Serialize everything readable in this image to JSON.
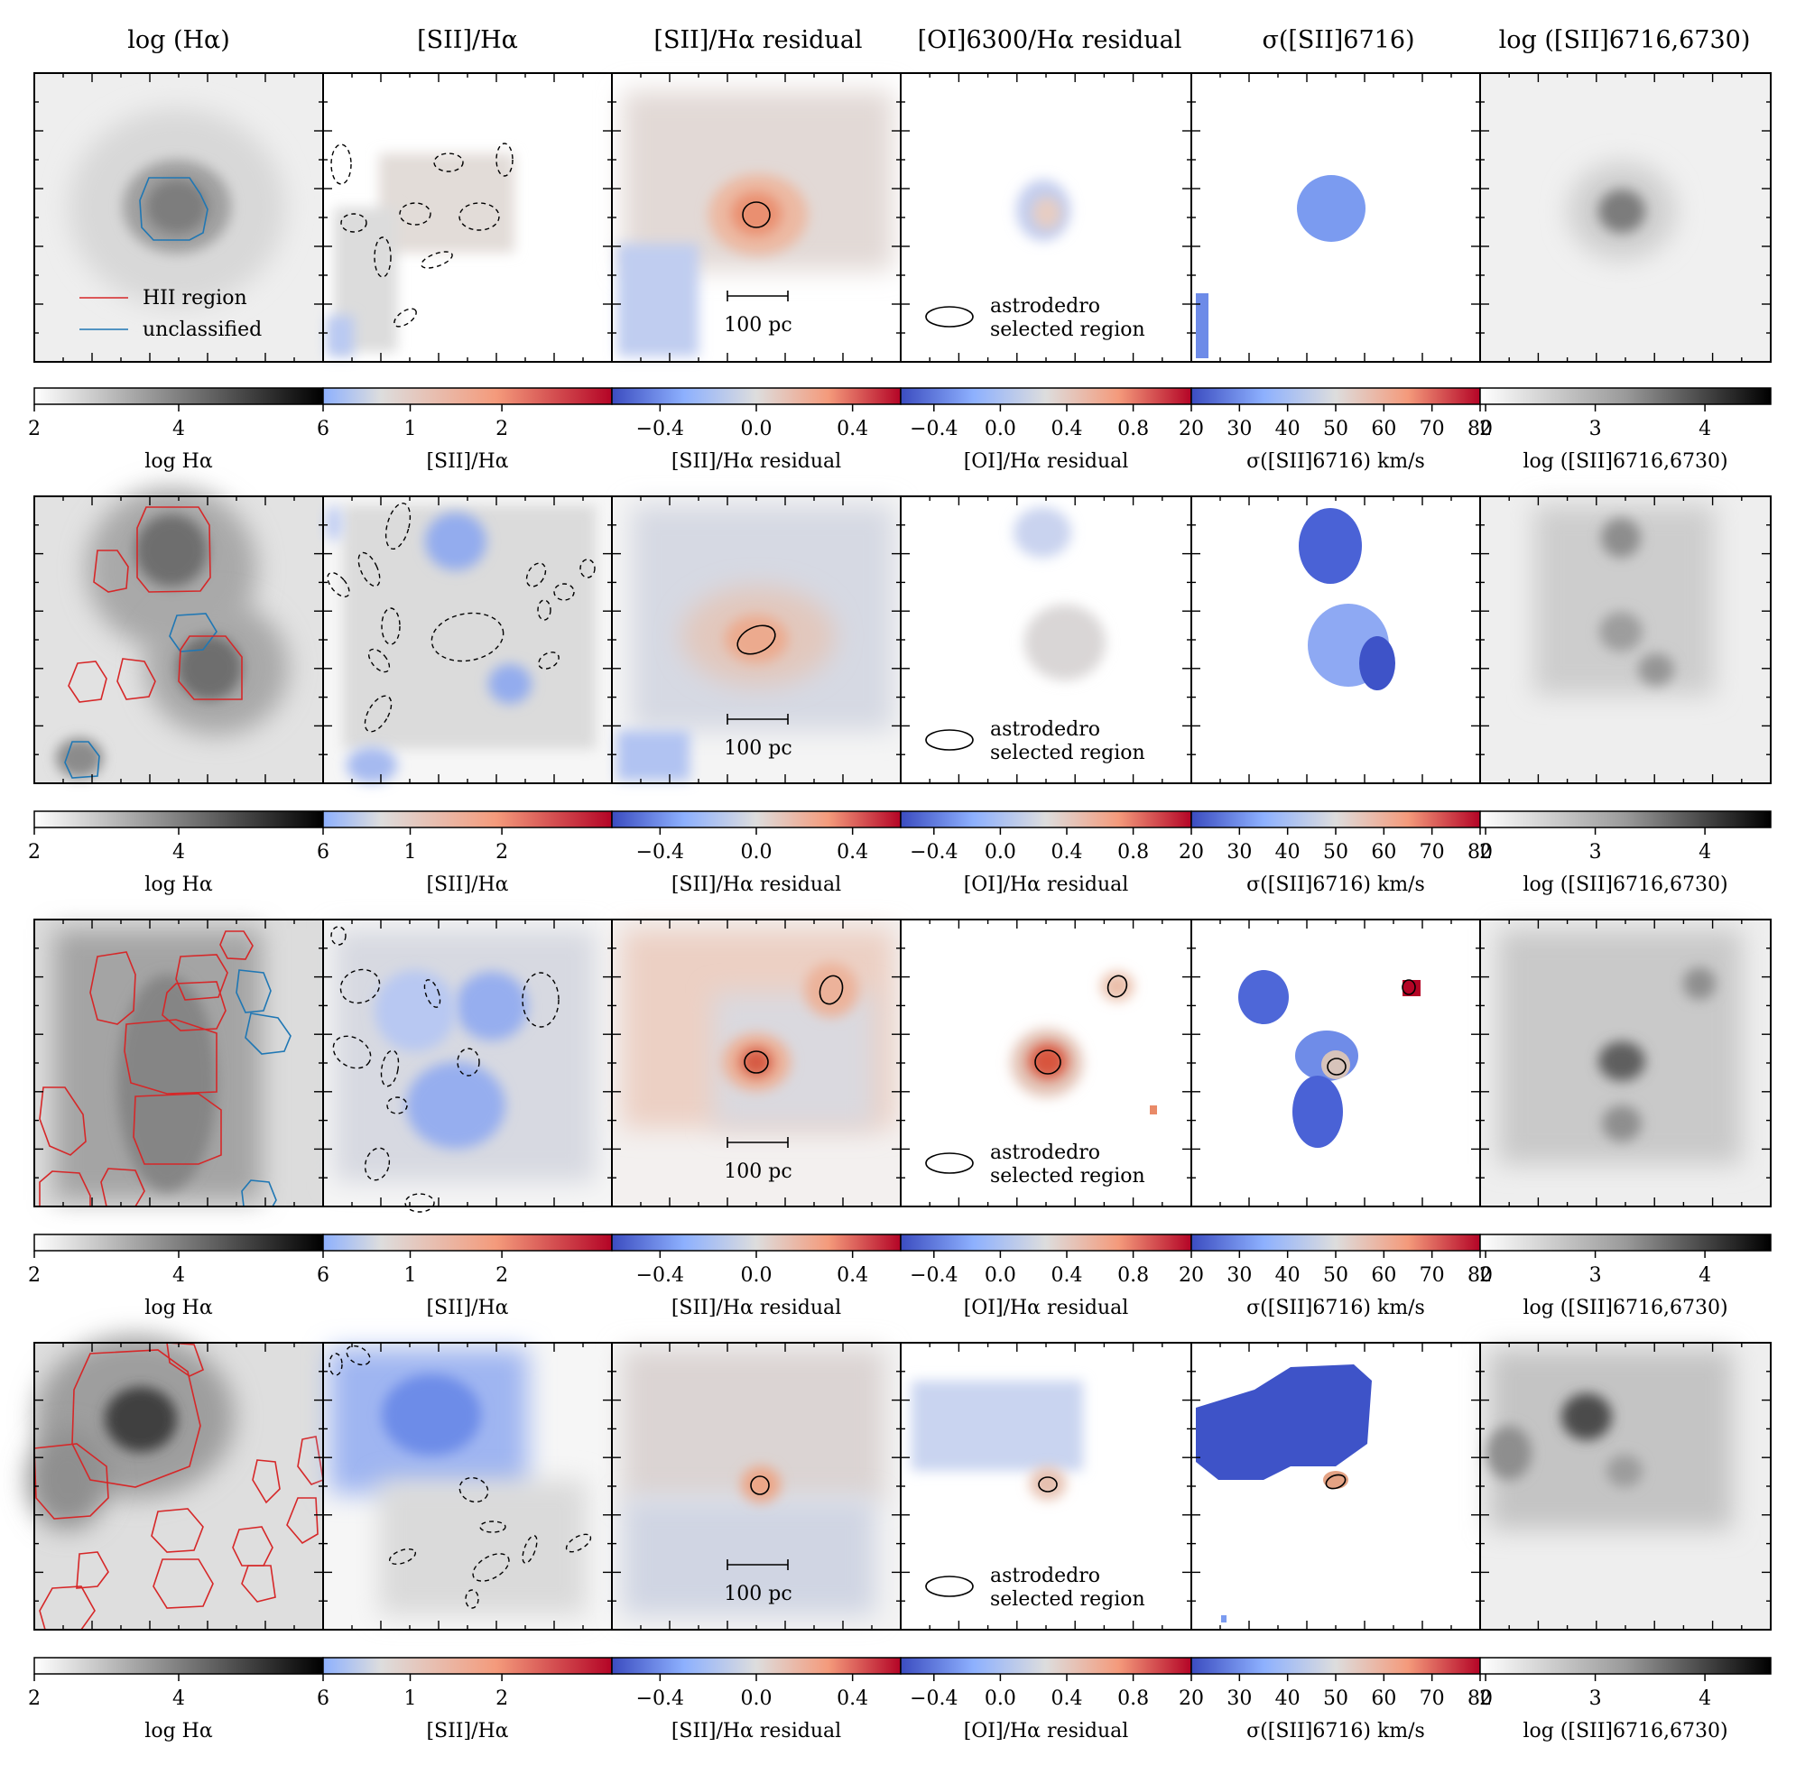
{
  "figure": {
    "top_titles": [
      "log (Hα)",
      "[SII]/Hα",
      "[SII]/Hα residual",
      "[OI]6300/Hα residual",
      "σ([SII]6716)",
      "log ([SII]6716,6730)"
    ],
    "cbar_labels": [
      "log Hα",
      "[SII]/Hα",
      "[SII]/Hα residual",
      "[OI]/Hα residual",
      "σ([SII]6716) km/s",
      "log ([SII]6716,6730)"
    ],
    "legend": {
      "hii": "HII region",
      "unclassified": "unclassified"
    },
    "scalebar_label": "100 pc",
    "ellipse_legend": [
      "astrodedro",
      "selected region"
    ],
    "colormaps": {
      "gray_start": "#f7f7f7",
      "gray_end": "#000000",
      "cw_blue": "#3b4cc0",
      "cw_mid": "#dddddd",
      "cw_red": "#b40426",
      "hii_color": "#d62728",
      "unclassified_color": "#1f77b4"
    },
    "colorbars": [
      {
        "cmap": "gray",
        "ticks": [
          "2",
          "4",
          "6"
        ],
        "tick_values": [
          2,
          4,
          6
        ],
        "range": [
          2,
          6
        ]
      },
      {
        "cmap": "coolwarm_half",
        "ticks": [
          "1",
          "2"
        ],
        "tick_values": [
          1,
          2
        ],
        "range": [
          0.05,
          3.2
        ]
      },
      {
        "cmap": "coolwarm",
        "ticks": [
          "−0.4",
          "0.0",
          "0.4"
        ],
        "tick_values": [
          -0.4,
          0.0,
          0.4
        ],
        "range": [
          -0.6,
          0.6
        ]
      },
      {
        "cmap": "coolwarm",
        "ticks": [
          "−0.4",
          "0.0",
          "0.4",
          "0.8"
        ],
        "tick_values": [
          -0.4,
          0.0,
          0.4,
          0.8
        ],
        "range": [
          -0.6,
          1.15
        ]
      },
      {
        "cmap": "coolwarm",
        "ticks": [
          "20",
          "30",
          "40",
          "50",
          "60",
          "70",
          "80"
        ],
        "tick_values": [
          20,
          30,
          40,
          50,
          60,
          70,
          80
        ],
        "range": [
          20,
          80
        ]
      },
      {
        "cmap": "gray_light",
        "ticks": [
          "2",
          "3",
          "4"
        ],
        "tick_values": [
          2,
          3,
          4
        ],
        "range": [
          1.95,
          4.6
        ]
      }
    ],
    "row_count": 4,
    "column_count": 6
  }
}
